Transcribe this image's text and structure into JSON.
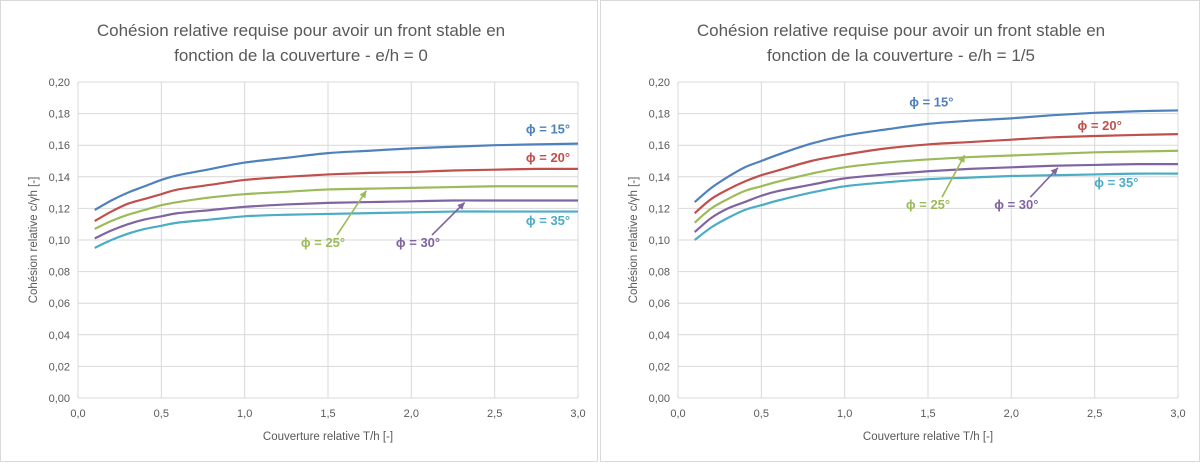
{
  "chart_data": [
    {
      "type": "line",
      "title": [
        "Cohésion relative requise pour avoir un front stable en",
        "fonction de la couverture - e/h = 0"
      ],
      "xlabel": "Couverture relative T/h [-]",
      "ylabel": "Cohésion relative c/γh [-]",
      "xlim": [
        0,
        3
      ],
      "ylim": [
        0,
        0.2
      ],
      "x_ticks": [
        "0,0",
        "0,5",
        "1,0",
        "1,5",
        "2,0",
        "2,5",
        "3,0"
      ],
      "y_ticks": [
        "0,00",
        "0,02",
        "0,04",
        "0,06",
        "0,08",
        "0,10",
        "0,12",
        "0,14",
        "0,16",
        "0,18",
        "0,20"
      ],
      "grid": true,
      "x": [
        0.1,
        0.2,
        0.3,
        0.4,
        0.5,
        0.6,
        0.8,
        1.0,
        1.25,
        1.5,
        1.75,
        2.0,
        2.25,
        2.5,
        2.75,
        3.0
      ],
      "series": [
        {
          "name": "ϕ = 15°",
          "color": "#4f81bd",
          "values": [
            0.119,
            0.125,
            0.13,
            0.134,
            0.138,
            0.141,
            0.145,
            0.149,
            0.152,
            0.155,
            0.1565,
            0.158,
            0.159,
            0.16,
            0.1605,
            0.161
          ]
        },
        {
          "name": "ϕ = 20°",
          "color": "#c0504d",
          "values": [
            0.112,
            0.118,
            0.123,
            0.126,
            0.129,
            0.132,
            0.135,
            0.138,
            0.14,
            0.1415,
            0.1425,
            0.143,
            0.144,
            0.1445,
            0.145,
            0.145
          ]
        },
        {
          "name": "ϕ = 25°",
          "color": "#9bbb59",
          "values": [
            0.107,
            0.112,
            0.116,
            0.119,
            0.122,
            0.124,
            0.127,
            0.129,
            0.1305,
            0.132,
            0.1325,
            0.133,
            0.1335,
            0.134,
            0.134,
            0.134
          ]
        },
        {
          "name": "ϕ = 30°",
          "color": "#8064a2",
          "values": [
            0.101,
            0.106,
            0.11,
            0.113,
            0.115,
            0.117,
            0.119,
            0.121,
            0.1225,
            0.1235,
            0.124,
            0.1245,
            0.125,
            0.125,
            0.125,
            0.125
          ]
        },
        {
          "name": "ϕ = 35°",
          "color": "#4bacc6",
          "values": [
            0.095,
            0.1,
            0.104,
            0.107,
            0.109,
            0.111,
            0.113,
            0.115,
            0.116,
            0.1165,
            0.117,
            0.1175,
            0.118,
            0.118,
            0.118,
            0.118
          ]
        }
      ],
      "labels": [
        {
          "text": "ϕ = 15°",
          "series": 0,
          "x": 2.82,
          "y": 0.1675,
          "arrow": false
        },
        {
          "text": "ϕ = 20°",
          "series": 1,
          "x": 2.82,
          "y": 0.1495,
          "arrow": false
        },
        {
          "text": "ϕ = 25°",
          "series": 2,
          "x": 1.47,
          "y": 0.0955,
          "arrow": true,
          "arrow_to": [
            1.73,
            0.1325
          ]
        },
        {
          "text": "ϕ = 30°",
          "series": 3,
          "x": 2.04,
          "y": 0.0955,
          "arrow": true,
          "arrow_to": [
            2.32,
            0.125
          ]
        },
        {
          "text": "ϕ = 35°",
          "series": 4,
          "x": 2.82,
          "y": 0.1095,
          "arrow": false
        }
      ]
    },
    {
      "type": "line",
      "title": [
        "Cohésion relative requise pour avoir un front stable en",
        "fonction de la couverture - e/h = 1/5"
      ],
      "xlabel": "Couverture relative T/h [-]",
      "ylabel": "Cohésion relative c/γh [-]",
      "xlim": [
        0,
        3
      ],
      "ylim": [
        0,
        0.2
      ],
      "x_ticks": [
        "0,0",
        "0,5",
        "1,0",
        "1,5",
        "2,0",
        "2,5",
        "3,0"
      ],
      "y_ticks": [
        "0,00",
        "0,02",
        "0,04",
        "0,06",
        "0,08",
        "0,10",
        "0,12",
        "0,14",
        "0,16",
        "0,18",
        "0,20"
      ],
      "grid": true,
      "x": [
        0.1,
        0.2,
        0.3,
        0.4,
        0.5,
        0.6,
        0.8,
        1.0,
        1.25,
        1.5,
        1.75,
        2.0,
        2.25,
        2.5,
        2.75,
        3.0
      ],
      "series": [
        {
          "name": "ϕ = 15°",
          "color": "#4f81bd",
          "values": [
            0.124,
            0.133,
            0.14,
            0.146,
            0.15,
            0.154,
            0.161,
            0.166,
            0.17,
            0.1735,
            0.1755,
            0.177,
            0.179,
            0.1805,
            0.1815,
            0.182
          ]
        },
        {
          "name": "ϕ = 20°",
          "color": "#c0504d",
          "values": [
            0.117,
            0.126,
            0.132,
            0.137,
            0.141,
            0.144,
            0.15,
            0.154,
            0.158,
            0.1605,
            0.162,
            0.1635,
            0.165,
            0.1658,
            0.1665,
            0.167
          ]
        },
        {
          "name": "ϕ = 25°",
          "color": "#9bbb59",
          "values": [
            0.111,
            0.12,
            0.126,
            0.131,
            0.134,
            0.137,
            0.142,
            0.146,
            0.149,
            0.151,
            0.1525,
            0.1535,
            0.1545,
            0.1555,
            0.156,
            0.1565
          ]
        },
        {
          "name": "ϕ = 30°",
          "color": "#8064a2",
          "values": [
            0.105,
            0.114,
            0.12,
            0.124,
            0.128,
            0.131,
            0.135,
            0.139,
            0.1415,
            0.1435,
            0.145,
            0.146,
            0.147,
            0.1475,
            0.148,
            0.148
          ]
        },
        {
          "name": "ϕ = 35°",
          "color": "#4bacc6",
          "values": [
            0.1,
            0.108,
            0.114,
            0.119,
            0.122,
            0.125,
            0.13,
            0.134,
            0.1365,
            0.1385,
            0.1395,
            0.1405,
            0.141,
            0.1415,
            0.142,
            0.142
          ]
        }
      ],
      "labels": [
        {
          "text": "ϕ = 15°",
          "series": 0,
          "x": 1.52,
          "y": 0.1845,
          "arrow": false
        },
        {
          "text": "ϕ = 20°",
          "series": 1,
          "x": 2.53,
          "y": 0.1695,
          "arrow": false
        },
        {
          "text": "ϕ = 25°",
          "series": 2,
          "x": 1.5,
          "y": 0.1195,
          "arrow": true,
          "arrow_to": [
            1.72,
            0.155
          ]
        },
        {
          "text": "ϕ = 30°",
          "series": 3,
          "x": 2.03,
          "y": 0.1195,
          "arrow": true,
          "arrow_to": [
            2.28,
            0.147
          ]
        },
        {
          "text": "ϕ = 35°",
          "series": 4,
          "x": 2.63,
          "y": 0.1335,
          "arrow": false
        }
      ]
    }
  ]
}
